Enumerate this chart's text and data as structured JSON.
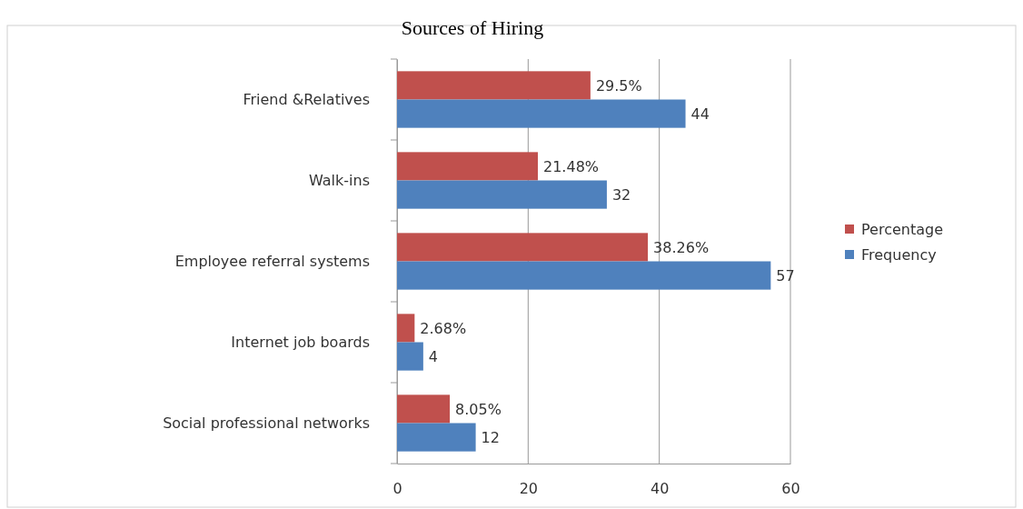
{
  "chart_data": {
    "type": "bar",
    "title": "Sources of Hiring",
    "orientation": "horizontal",
    "categories": [
      "Friend &Relatives",
      "Walk-ins",
      "Employee referral  systems",
      "Internet job boards",
      "Social professional networks"
    ],
    "series": [
      {
        "name": "Percentage",
        "color": "#c0504d",
        "values": [
          29.5,
          21.48,
          38.26,
          2.68,
          8.05
        ],
        "value_labels": [
          "29.5%",
          "21.48%",
          "38.26%",
          "2.68%",
          "8.05%"
        ]
      },
      {
        "name": "Frequency",
        "color": "#4f81bd",
        "values": [
          44,
          32,
          57,
          4,
          12
        ],
        "value_labels": [
          "44",
          "32",
          "57",
          "4",
          "12"
        ]
      }
    ],
    "xlim": [
      0,
      60
    ],
    "xticks": [
      0,
      20,
      40,
      60
    ],
    "grid": "x",
    "legend": "right"
  }
}
